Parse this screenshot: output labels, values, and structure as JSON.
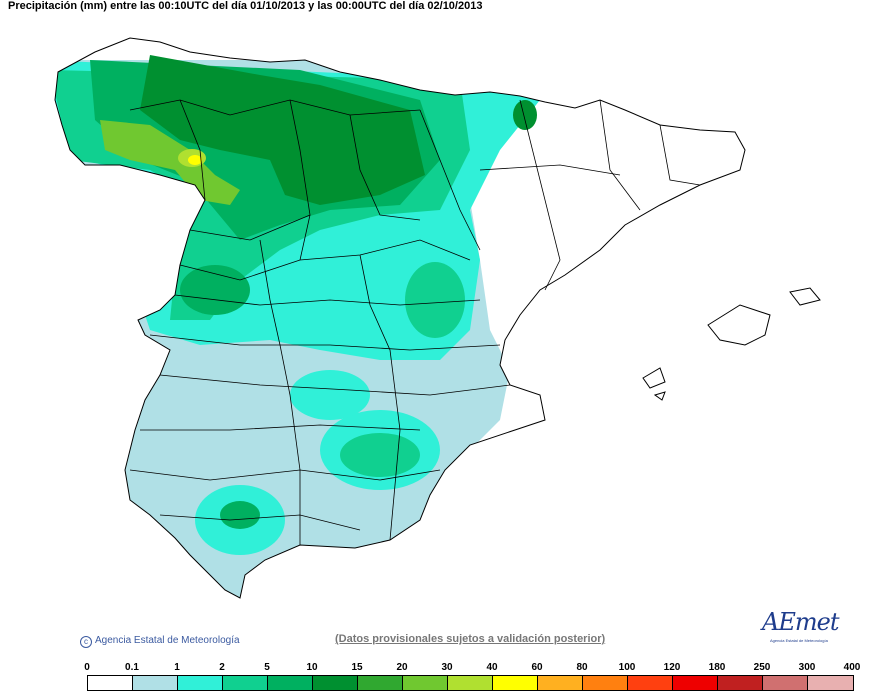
{
  "title": "Precipitación (mm) entre las 00:10UTC del día 01/10/2013 y las 00:00UTC del día 02/10/2013",
  "credit": "Agencia Estatal de Meteorología",
  "disclaimer": "(Datos provisionales sujetos a validación posterior)",
  "logo": {
    "text": "AEmet",
    "subtitle": "Agencia Estatal de Meteorología"
  },
  "legend": {
    "ticks": [
      "0",
      "0.1",
      "1",
      "2",
      "5",
      "10",
      "15",
      "20",
      "30",
      "40",
      "60",
      "80",
      "100",
      "120",
      "180",
      "250",
      "300",
      "400"
    ],
    "colors": [
      "#ffffff",
      "#b0e0e6",
      "#30f0d8",
      "#10d090",
      "#00b060",
      "#009030",
      "#30a830",
      "#70c830",
      "#b0e030",
      "#ffff00",
      "#ffb020",
      "#ff8010",
      "#ff4010",
      "#ee0000",
      "#c02020",
      "#d07070",
      "#e8b0b0"
    ]
  },
  "colors": {
    "light_blue": "#b0e0e6",
    "cyan": "#30f0d8",
    "green_light": "#10d090",
    "green": "#00b060",
    "green_dark": "#009030",
    "lime": "#70c830",
    "yellow_green": "#b0e030"
  }
}
